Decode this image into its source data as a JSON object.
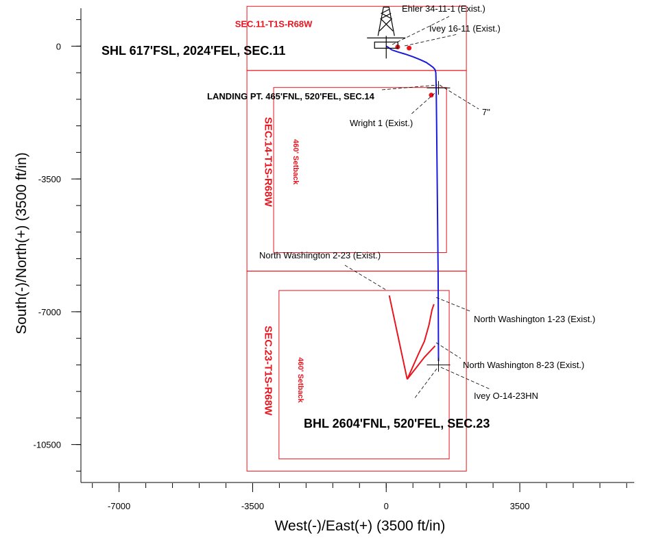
{
  "chart_data": {
    "type": "scatter",
    "xlabel": "West(-)/East(+) (3500 ft/in)",
    "ylabel": "South(-)/North(+) (3500 ft/in)",
    "xlim": [
      -8000,
      6500
    ],
    "ylim": [
      -11500,
      1000
    ],
    "x_ticks": [
      {
        "value": -7000,
        "label": "-7000"
      },
      {
        "value": -3500,
        "label": "-3500"
      },
      {
        "value": 0,
        "label": "0"
      },
      {
        "value": 3500,
        "label": "3500"
      }
    ],
    "y_ticks": [
      {
        "value": 0,
        "label": "0"
      },
      {
        "value": -3500,
        "label": "-3500"
      },
      {
        "value": -7000,
        "label": "-7000"
      },
      {
        "value": -10500,
        "label": "-10500"
      }
    ],
    "x_minor_step": 700,
    "y_minor_step": 700,
    "colors": {
      "section": "#e8141e",
      "wellbore": "#1a1adc",
      "offset_well": "#e8141e",
      "text": "#000000"
    },
    "sections": [
      {
        "label": "SEC.11-T1S-R68W",
        "x0": -3650,
        "x1": 2100,
        "y0": -640,
        "y1": 1050,
        "label_at": [
          -2950,
          500
        ],
        "rotated": false
      },
      {
        "label": "SEC.14-T1S-R68W",
        "x0": -3650,
        "x1": 2100,
        "y0": -5930,
        "y1": -640,
        "label_at": [
          -3180,
          -3050
        ],
        "rotated": true
      },
      {
        "label": "SEC.23-T1S-R68W",
        "x0": -3650,
        "x1": 2100,
        "y0": -11200,
        "y1": -5930,
        "label_at": [
          -3180,
          -8550
        ],
        "rotated": true
      }
    ],
    "setbacks": [
      {
        "label": "460' Setback",
        "x0": -2950,
        "x1": 1580,
        "y0": -5440,
        "y1": -1090,
        "label_at": [
          -2430,
          -3050
        ]
      },
      {
        "label": "460' Setback",
        "x0": -2810,
        "x1": 1650,
        "y0": -10880,
        "y1": -6440,
        "label_at": [
          -2300,
          -8800
        ]
      }
    ],
    "series": [
      {
        "name": "Ivey O-14-23HN",
        "kind": "wellbore",
        "x": [
          0,
          50,
          150,
          300,
          500,
          700,
          900,
          1050,
          1150,
          1230,
          1280,
          1300,
          1310,
          1320,
          1330,
          1340,
          1350,
          1360,
          1370
        ],
        "y": [
          0,
          -30,
          -100,
          -150,
          -210,
          -280,
          -360,
          -430,
          -500,
          -560,
          -620,
          -700,
          -1100,
          -2000,
          -3000,
          -4000,
          -5000,
          -6000,
          -8300
        ]
      }
    ],
    "offset_wells": [
      {
        "name": "Ehler 34-11-1 (Exist.)",
        "x": [
          300
        ],
        "y": [
          -20
        ]
      },
      {
        "name": "Ivey 16-11 (Exist.)",
        "x": [
          600
        ],
        "y": [
          -50
        ]
      },
      {
        "name": "Wright 1 (Exist.)",
        "x": [
          1180
        ],
        "y": [
          -1290
        ]
      },
      {
        "name": "North Washington 2-23 (Exist.)",
        "x": [
          80,
          550
        ],
        "y": [
          -6570,
          -8780
        ]
      },
      {
        "name": "North Washington 1-23 (Exist.)",
        "x": [
          550,
          850,
          1000,
          1120,
          1200,
          1250
        ],
        "y": [
          -8780,
          -8100,
          -7780,
          -7350,
          -6950,
          -6800
        ]
      },
      {
        "name": "North Washington 8-23 (Exist.)",
        "x": [
          550,
          1000,
          1280
        ],
        "y": [
          -8780,
          -8200,
          -7900
        ]
      }
    ],
    "markers": [
      {
        "name": "rig",
        "x": 0,
        "y": 0
      },
      {
        "name": "landing-point",
        "x": 1370,
        "y": -1100
      },
      {
        "name": "bhl",
        "x": 1370,
        "y": -8400
      }
    ],
    "annotations": [
      {
        "text": "SHL 617'FSL, 2024'FEL, SEC.11",
        "bold": true,
        "size": 18
      },
      {
        "text": "LANDING PT. 465'FNL, 520'FEL, SEC.14",
        "bold": true,
        "size": 13
      },
      {
        "text": "BHL 2604'FNL, 520'FEL, SEC.23",
        "bold": true,
        "size": 18
      },
      {
        "text": "Ehler 34-11-1 (Exist.)",
        "bold": false,
        "size": 13
      },
      {
        "text": "Ivey 16-11 (Exist.)",
        "bold": false,
        "size": 13
      },
      {
        "text": "7\"",
        "bold": false,
        "size": 13
      },
      {
        "text": "Wright 1 (Exist.)",
        "bold": false,
        "size": 13
      },
      {
        "text": "North Washington 2-23 (Exist.)",
        "bold": false,
        "size": 13
      },
      {
        "text": "North Washington 1-23 (Exist.)",
        "bold": false,
        "size": 13
      },
      {
        "text": "North Washington 8-23 (Exist.)",
        "bold": false,
        "size": 13
      },
      {
        "text": "Ivey O-14-23HN",
        "bold": false,
        "size": 13
      }
    ]
  }
}
